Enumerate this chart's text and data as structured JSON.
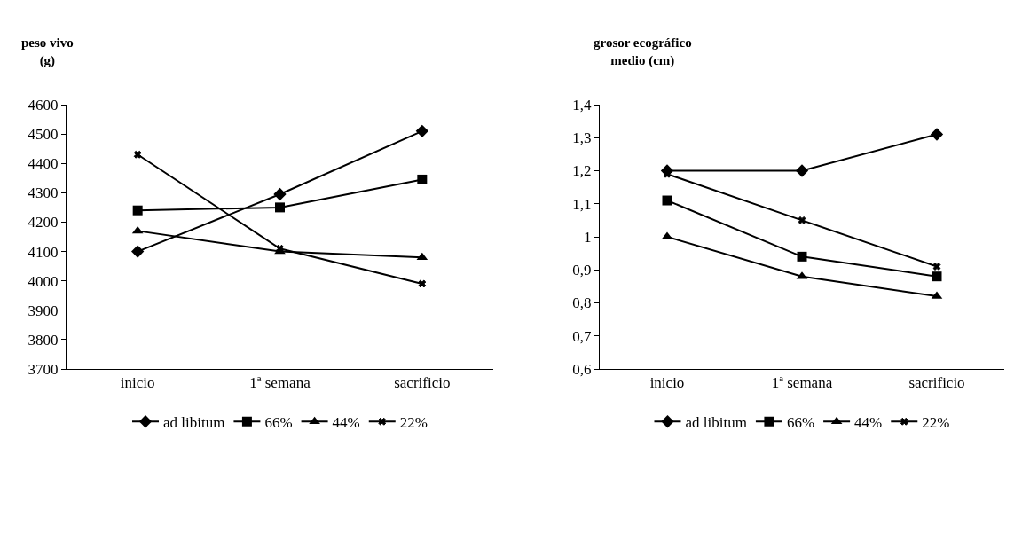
{
  "chart_data": [
    {
      "type": "line",
      "ylabel": "peso vivo\n(g)",
      "categories": [
        "inicio",
        "1ª semana",
        "sacrificio"
      ],
      "series": [
        {
          "name": "ad libitum",
          "color": "#000000",
          "marker": "diamond",
          "values": [
            4100,
            4295,
            4510
          ]
        },
        {
          "name": "66%",
          "color": "#000000",
          "marker": "square",
          "values": [
            4240,
            4250,
            4345
          ]
        },
        {
          "name": "44%",
          "color": "#000000",
          "marker": "triangle",
          "values": [
            4170,
            4100,
            4080
          ]
        },
        {
          "name": "22%",
          "color": "#000000",
          "marker": "cross",
          "values": [
            4430,
            4110,
            3990
          ]
        }
      ],
      "ylim": [
        3700,
        4600
      ],
      "yticks": [
        3700,
        3800,
        3900,
        4000,
        4100,
        4200,
        4300,
        4400,
        4500,
        4600
      ],
      "grid": false,
      "legend": "bottom"
    },
    {
      "type": "line",
      "ylabel": "grosor ecográfico\nmedio (cm)",
      "categories": [
        "inicio",
        "1ª semana",
        "sacrificio"
      ],
      "series": [
        {
          "name": "ad libitum",
          "color": "#000000",
          "marker": "diamond",
          "values": [
            1.2,
            1.2,
            1.31
          ]
        },
        {
          "name": "66%",
          "color": "#000000",
          "marker": "square",
          "values": [
            1.11,
            0.94,
            0.88
          ]
        },
        {
          "name": "44%",
          "color": "#000000",
          "marker": "triangle",
          "values": [
            1.0,
            0.88,
            0.82
          ]
        },
        {
          "name": "22%",
          "color": "#000000",
          "marker": "cross",
          "values": [
            1.19,
            1.05,
            0.91
          ]
        }
      ],
      "ylim": [
        0.6,
        1.4
      ],
      "yticks": [
        {
          "value": 0.6,
          "label": "0,6"
        },
        {
          "value": 0.7,
          "label": "0,7"
        },
        {
          "value": 0.8,
          "label": "0,8"
        },
        {
          "value": 0.9,
          "label": "0,9"
        },
        1,
        {
          "value": 1.1,
          "label": "1,1"
        },
        {
          "value": 1.2,
          "label": "1,2"
        },
        {
          "value": 1.3,
          "label": "1,3"
        },
        {
          "value": 1.4,
          "label": "1,4"
        }
      ],
      "grid": false,
      "legend": "bottom"
    }
  ]
}
